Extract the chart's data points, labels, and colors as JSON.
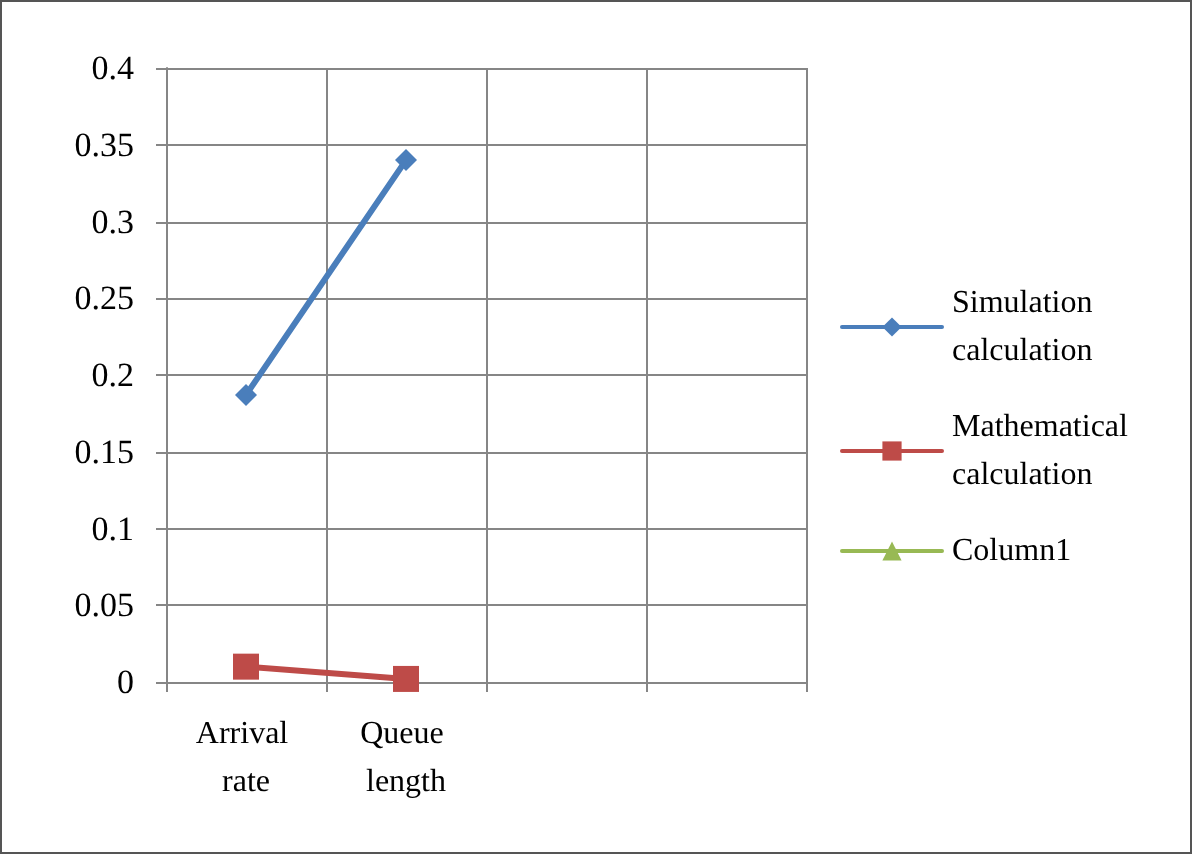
{
  "chart_data": {
    "type": "line",
    "categories": [
      "Arrival rate",
      "Queue length",
      null,
      null
    ],
    "series": [
      {
        "name": "Simulation calculation",
        "color": "#4a7ebb",
        "marker": "diamond",
        "values": [
          0.187,
          0.34,
          null,
          null
        ]
      },
      {
        "name": "Mathematical calculation",
        "color": "#be4b48",
        "marker": "square",
        "values": [
          0.01,
          0.002,
          null,
          null
        ]
      },
      {
        "name": "Column1",
        "color": "#98b954",
        "marker": "triangle",
        "values": [
          null,
          null,
          null,
          null
        ]
      }
    ],
    "ylim": [
      0,
      0.4
    ],
    "yticks": [
      0,
      0.05,
      0.1,
      0.15,
      0.2,
      0.25,
      0.3,
      0.35,
      0.4
    ],
    "grid": true,
    "legend": "right",
    "line_style": "solid"
  }
}
